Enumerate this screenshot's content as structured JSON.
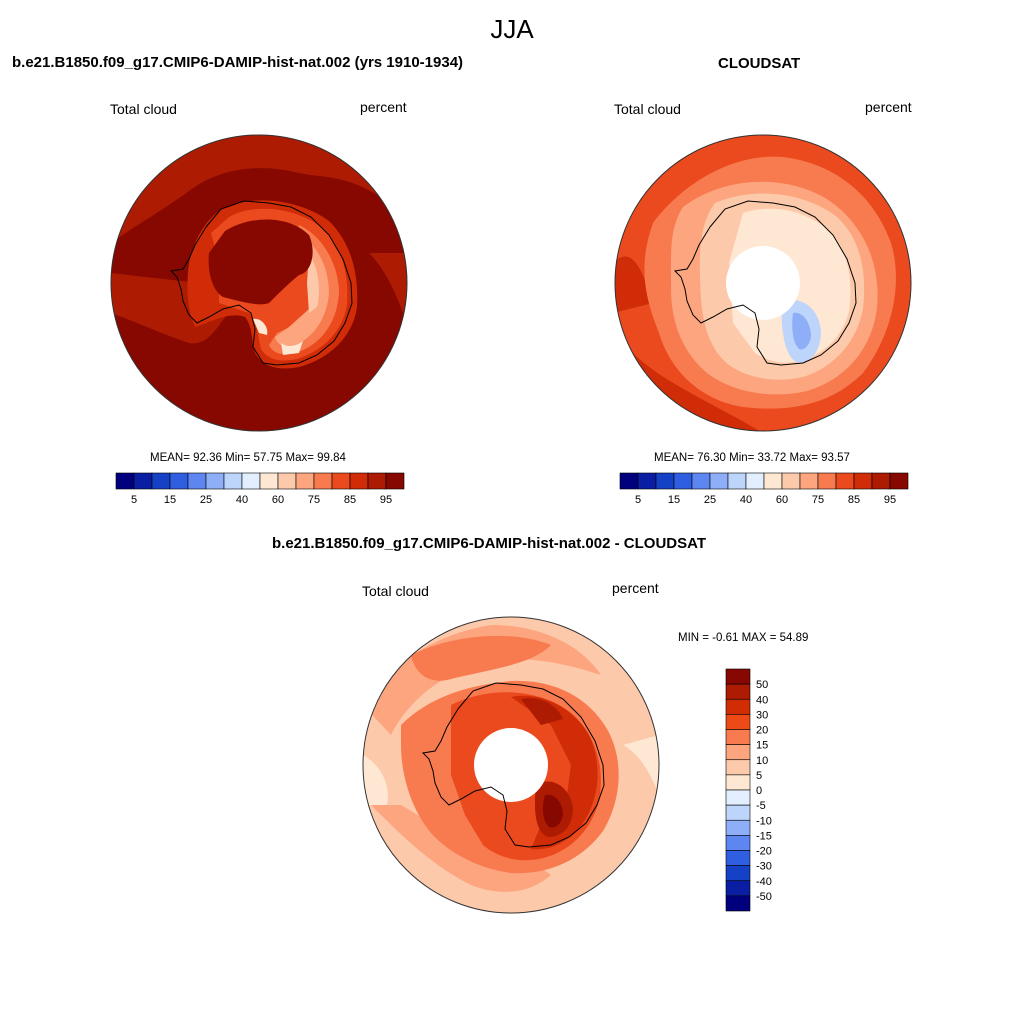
{
  "season": "JJA",
  "panels": [
    {
      "title": "b.e21.B1850.f09_g17.CMIP6-DAMIP-hist-nat.002 (yrs 1910-1934)",
      "left_label": "Total cloud",
      "right_label": "percent",
      "stats": "MEAN=  92.36  Min=  57.75  Max=  99.84"
    },
    {
      "title": "CLOUDSAT",
      "left_label": "Total cloud",
      "right_label": "percent",
      "stats": "MEAN=  76.30  Min=  33.72  Max=  93.57"
    },
    {
      "title": "b.e21.B1850.f09_g17.CMIP6-DAMIP-hist-nat.002 - CLOUDSAT",
      "left_label": "Total cloud",
      "right_label": "percent",
      "stats": "MIN =  -0.61 MAX =  54.89"
    }
  ],
  "abs_colorbar": {
    "colors": [
      "#00007f",
      "#0a1ea3",
      "#1541c6",
      "#2f5fe0",
      "#5d86f0",
      "#8eaef7",
      "#bdd4fb",
      "#e3efff",
      "#fee7d3",
      "#fdc9ab",
      "#fca57e",
      "#f87a4f",
      "#ea4a1d",
      "#cf2c07",
      "#ad1b02",
      "#870800"
    ],
    "tick_labels": [
      "5",
      "15",
      "25",
      "40",
      "60",
      "75",
      "85",
      "95"
    ]
  },
  "diff_colorbar": {
    "colors": [
      "#870800",
      "#ad1b02",
      "#d12d05",
      "#ee4a18",
      "#f87a4f",
      "#fca57e",
      "#fdc9ab",
      "#fee7d3",
      "#e3efff",
      "#bdd4fb",
      "#8eaef7",
      "#5d86f0",
      "#2f5fe0",
      "#1541c6",
      "#0a1ea3",
      "#00007f"
    ],
    "tick_labels": [
      "50",
      "40",
      "30",
      "20",
      "15",
      "10",
      "5",
      "0",
      "-5",
      "-10",
      "-15",
      "-20",
      "-30",
      "-40",
      "-50"
    ]
  }
}
